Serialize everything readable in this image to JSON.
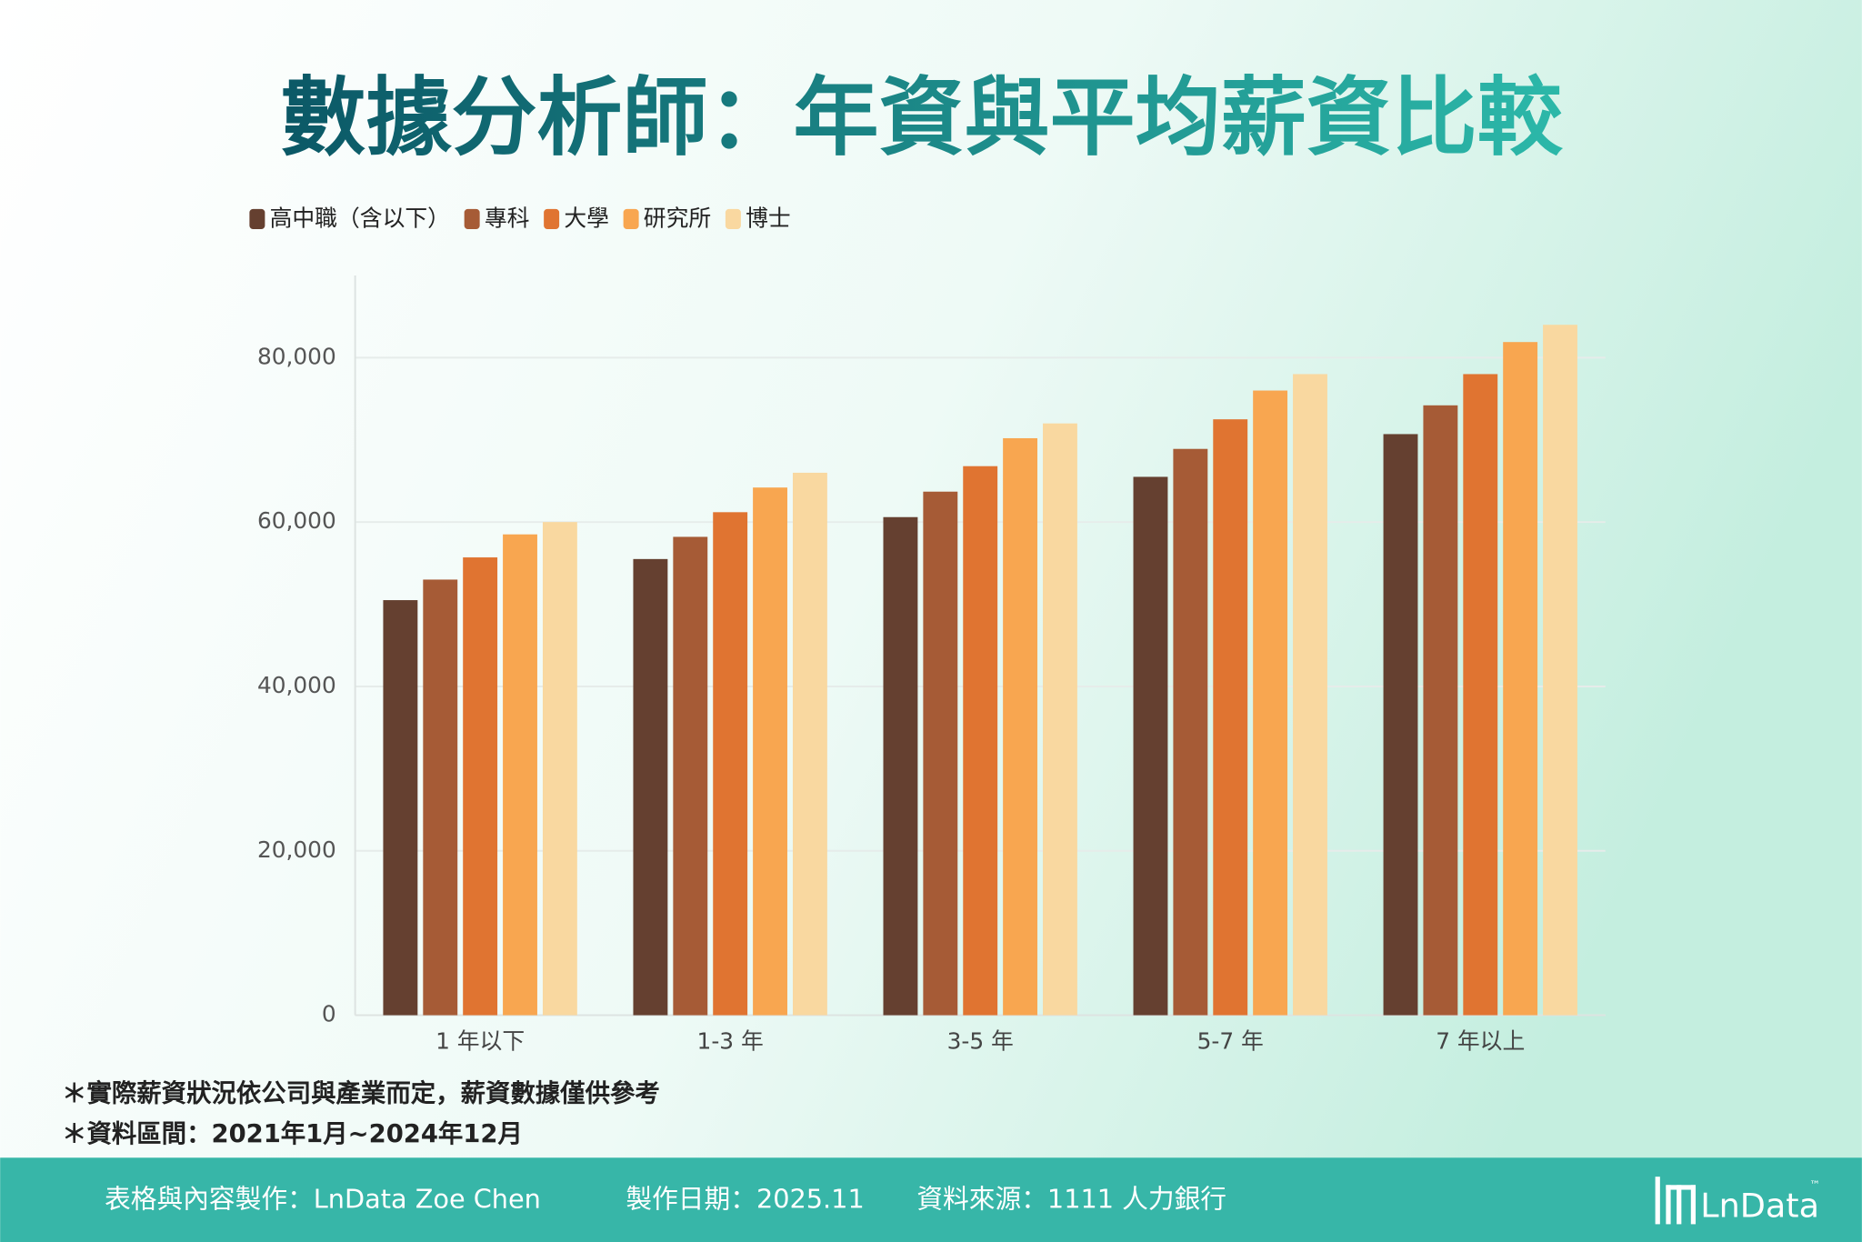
{
  "chart_data": {
    "type": "bar",
    "title": "數據分析師：年資與平均薪資比較",
    "categories": [
      "1 年以下",
      "1-3 年",
      "3-5 年",
      "5-7 年",
      "7 年以上"
    ],
    "series": [
      {
        "name": "高中職（含以下）",
        "color": "#654030",
        "values": [
          50500,
          55500,
          60600,
          65500,
          70700
        ]
      },
      {
        "name": "專科",
        "color": "#a65b36",
        "values": [
          53000,
          58200,
          63700,
          68900,
          74200
        ]
      },
      {
        "name": "大學",
        "color": "#e07431",
        "values": [
          55700,
          61200,
          66800,
          72500,
          78000
        ]
      },
      {
        "name": "研究所",
        "color": "#f8a650",
        "values": [
          58500,
          64200,
          70200,
          76000,
          81900
        ]
      },
      {
        "name": "博士",
        "color": "#f9d8a0",
        "values": [
          60000,
          66000,
          72000,
          78000,
          84000
        ]
      }
    ],
    "ylim": [
      0,
      90000
    ],
    "yticks": [
      0,
      {
        "value": 20000,
        "label": "20,000"
      },
      {
        "value": 40000,
        "label": "40,000"
      },
      {
        "value": 60000,
        "label": "60,000"
      },
      {
        "value": 80000,
        "label": "80,000"
      }
    ],
    "grid": true,
    "legend": "top-left"
  },
  "notes": [
    "＊實際薪資狀況依公司與產業而定，薪資數據僅供參考",
    "＊資料區間：2021年1月~2024年12月"
  ],
  "footer": {
    "credit": "表格與內容製作：LnData Zoe Chen",
    "date": "製作日期：2025.11",
    "source": "資料來源：1111 人力銀行",
    "logo": "LnData",
    "trademark": "™"
  }
}
